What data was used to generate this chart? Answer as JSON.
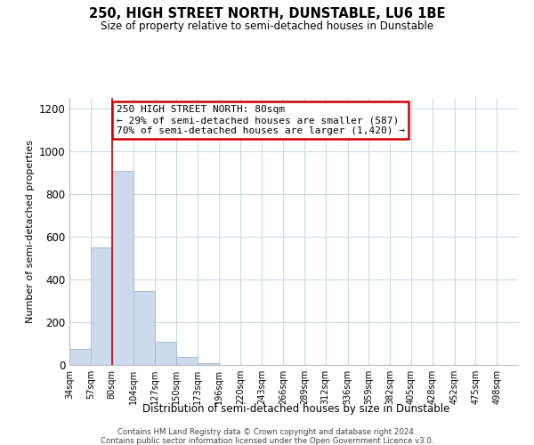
{
  "title": "250, HIGH STREET NORTH, DUNSTABLE, LU6 1BE",
  "subtitle": "Size of property relative to semi-detached houses in Dunstable",
  "xlabel": "Distribution of semi-detached houses by size in Dunstable",
  "ylabel": "Number of semi-detached properties",
  "bin_labels": [
    "34sqm",
    "57sqm",
    "80sqm",
    "104sqm",
    "127sqm",
    "150sqm",
    "173sqm",
    "196sqm",
    "220sqm",
    "243sqm",
    "266sqm",
    "289sqm",
    "312sqm",
    "336sqm",
    "359sqm",
    "382sqm",
    "405sqm",
    "428sqm",
    "452sqm",
    "475sqm",
    "498sqm"
  ],
  "bin_edges": [
    34,
    57,
    80,
    104,
    127,
    150,
    173,
    196,
    220,
    243,
    266,
    289,
    312,
    336,
    359,
    382,
    405,
    428,
    452,
    475,
    498,
    521
  ],
  "bar_heights": [
    75,
    550,
    910,
    345,
    110,
    38,
    10,
    0,
    0,
    0,
    0,
    0,
    0,
    0,
    0,
    0,
    0,
    0,
    0,
    0,
    0
  ],
  "bar_color": "#cdd9ed",
  "bar_edgecolor": "#a8bdd6",
  "vline_x": 80,
  "vline_color": "#cc0000",
  "ylim": [
    0,
    1250
  ],
  "yticks": [
    0,
    200,
    400,
    600,
    800,
    1000,
    1200
  ],
  "annotation_title": "250 HIGH STREET NORTH: 80sqm",
  "annotation_line1": "← 29% of semi-detached houses are smaller (587)",
  "annotation_line2": "70% of semi-detached houses are larger (1,420) →",
  "annotation_box_color": "#ffffff",
  "annotation_box_edgecolor": "#cc0000",
  "footer1": "Contains HM Land Registry data © Crown copyright and database right 2024.",
  "footer2": "Contains public sector information licensed under the Open Government Licence v3.0.",
  "background_color": "#ffffff",
  "grid_color": "#c5d5e8"
}
